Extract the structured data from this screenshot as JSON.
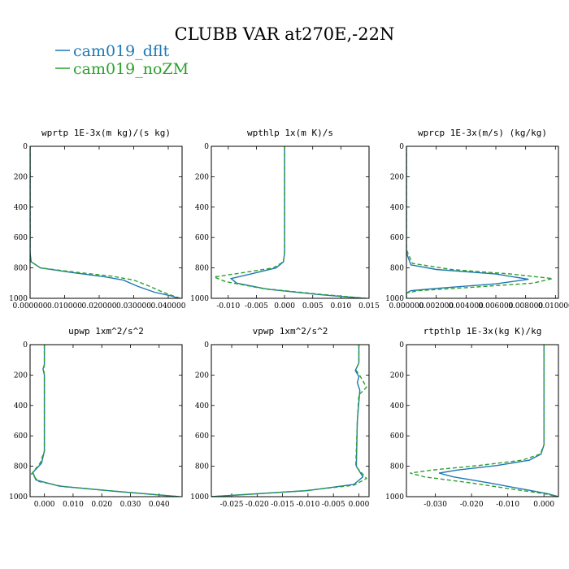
{
  "figure": {
    "title": "CLUBB VAR at270E,-22N",
    "legend": [
      {
        "name": "cam019_dflt",
        "color": "#1f77b4",
        "dash": "solid"
      },
      {
        "name": "cam019_noZM",
        "color": "#2ca02c",
        "dash": "dashed"
      }
    ]
  },
  "chart_data": [
    {
      "type": "line",
      "title": "wprtp  1E-3x(m kg)/(s kg)",
      "xlim": [
        0.0,
        0.044
      ],
      "ylim": [
        1000,
        0
      ],
      "xticks": [
        0.0,
        0.01,
        0.02,
        0.03,
        0.04
      ],
      "xtick_labels": [
        "0.000000",
        "0.010000",
        "0.020000",
        "0.030000",
        "0.040000"
      ],
      "yticks": [
        0,
        200,
        400,
        600,
        800,
        1000
      ],
      "ytick_labels": [
        "0",
        "200",
        "400",
        "600",
        "800",
        "1000"
      ],
      "series": [
        {
          "name": "cam019_dflt",
          "points": [
            [
              0.0,
              0
            ],
            [
              0.0,
              700
            ],
            [
              0.0003,
              760
            ],
            [
              0.003,
              800
            ],
            [
              0.012,
              830
            ],
            [
              0.022,
              860
            ],
            [
              0.027,
              880
            ],
            [
              0.031,
              920
            ],
            [
              0.036,
              960
            ],
            [
              0.041,
              985
            ],
            [
              0.043,
              1000
            ]
          ]
        },
        {
          "name": "cam019_noZM",
          "points": [
            [
              0.0,
              0
            ],
            [
              0.0,
              700
            ],
            [
              0.0003,
              760
            ],
            [
              0.003,
              800
            ],
            [
              0.013,
              828
            ],
            [
              0.024,
              855
            ],
            [
              0.03,
              880
            ],
            [
              0.034,
              915
            ],
            [
              0.038,
              955
            ],
            [
              0.0415,
              985
            ],
            [
              0.0435,
              1000
            ]
          ]
        }
      ]
    },
    {
      "type": "line",
      "title": "wpthlp  1x(m K)/s",
      "xlim": [
        -0.013,
        0.015
      ],
      "ylim": [
        1000,
        0
      ],
      "xticks": [
        -0.01,
        -0.005,
        0.0,
        0.005,
        0.01,
        0.015
      ],
      "xtick_labels": [
        "-0.010",
        "-0.005",
        "0.000",
        "0.005",
        "0.010",
        "0.015"
      ],
      "yticks": [
        0,
        200,
        400,
        600,
        800,
        1000
      ],
      "ytick_labels": [
        "0",
        "200",
        "400",
        "600",
        "800",
        "1000"
      ],
      "series": [
        {
          "name": "cam019_dflt",
          "points": [
            [
              0.0,
              0
            ],
            [
              0.0,
              700
            ],
            [
              -0.0002,
              760
            ],
            [
              -0.0015,
              800
            ],
            [
              -0.006,
              840
            ],
            [
              -0.0095,
              870
            ],
            [
              -0.0085,
              900
            ],
            [
              -0.003,
              940
            ],
            [
              0.006,
              975
            ],
            [
              0.014,
              1000
            ]
          ]
        },
        {
          "name": "cam019_noZM",
          "points": [
            [
              0.0,
              0
            ],
            [
              0.0,
              700
            ],
            [
              -0.0002,
              760
            ],
            [
              -0.002,
              800
            ],
            [
              -0.008,
              835
            ],
            [
              -0.0125,
              860
            ],
            [
              -0.0105,
              890
            ],
            [
              -0.004,
              935
            ],
            [
              0.006,
              972
            ],
            [
              0.0145,
              1000
            ]
          ]
        }
      ]
    },
    {
      "type": "line",
      "title": "wprcp  1E-3x(m/s) (kg/kg)",
      "xlim": [
        0.0,
        0.0102
      ],
      "ylim": [
        1000,
        0
      ],
      "xticks": [
        0.0,
        0.002,
        0.004,
        0.006,
        0.008,
        0.01
      ],
      "xtick_labels": [
        "0.000000",
        "0.002000",
        "0.004000",
        "0.006000",
        "0.008000",
        "0.010000"
      ],
      "yticks": [
        0,
        200,
        400,
        600,
        800,
        1000
      ],
      "ytick_labels": [
        "0",
        "200",
        "400",
        "600",
        "800",
        "1000"
      ],
      "series": [
        {
          "name": "cam019_dflt",
          "points": [
            [
              0.0,
              0
            ],
            [
              0.0,
              700
            ],
            [
              0.0003,
              780
            ],
            [
              0.002,
              810
            ],
            [
              0.006,
              840
            ],
            [
              0.0082,
              875
            ],
            [
              0.006,
              905
            ],
            [
              0.002,
              935
            ],
            [
              0.0003,
              950
            ],
            [
              0.0,
              965
            ],
            [
              0.0,
              1000
            ]
          ]
        },
        {
          "name": "cam019_noZM",
          "points": [
            [
              0.0,
              0
            ],
            [
              0.0,
              680
            ],
            [
              0.0004,
              770
            ],
            [
              0.003,
              810
            ],
            [
              0.007,
              840
            ],
            [
              0.0098,
              870
            ],
            [
              0.0085,
              900
            ],
            [
              0.004,
              930
            ],
            [
              0.0008,
              950
            ],
            [
              0.0,
              965
            ],
            [
              0.0,
              1000
            ]
          ]
        }
      ]
    },
    {
      "type": "line",
      "title": "upwp  1xm^2/s^2",
      "xlim": [
        -0.005,
        0.048
      ],
      "ylim": [
        1000,
        0
      ],
      "xticks": [
        0.0,
        0.01,
        0.02,
        0.03,
        0.04
      ],
      "xtick_labels": [
        "0.000",
        "0.010",
        "0.020",
        "0.030",
        "0.040"
      ],
      "yticks": [
        0,
        200,
        400,
        600,
        800,
        1000
      ],
      "ytick_labels": [
        "0",
        "200",
        "400",
        "600",
        "800",
        "1000"
      ],
      "series": [
        {
          "name": "cam019_dflt",
          "points": [
            [
              0.0,
              0
            ],
            [
              0.0,
              130
            ],
            [
              -0.0005,
              160
            ],
            [
              0.0,
              200
            ],
            [
              0.0,
              700
            ],
            [
              -0.001,
              780
            ],
            [
              -0.004,
              840
            ],
            [
              -0.003,
              890
            ],
            [
              0.005,
              930
            ],
            [
              0.025,
              965
            ],
            [
              0.047,
              1000
            ]
          ]
        },
        {
          "name": "cam019_noZM",
          "points": [
            [
              0.0,
              0
            ],
            [
              0.0,
              130
            ],
            [
              -0.0003,
              160
            ],
            [
              0.0,
              200
            ],
            [
              0.0,
              700
            ],
            [
              -0.0015,
              780
            ],
            [
              -0.0045,
              850
            ],
            [
              -0.002,
              900
            ],
            [
              0.007,
              935
            ],
            [
              0.027,
              968
            ],
            [
              0.047,
              1000
            ]
          ]
        }
      ]
    },
    {
      "type": "line",
      "title": "vpwp  1xm^2/s^2",
      "xlim": [
        -0.029,
        0.002
      ],
      "ylim": [
        1000,
        0
      ],
      "xticks": [
        -0.025,
        -0.02,
        -0.015,
        -0.01,
        -0.005,
        0.0
      ],
      "xtick_labels": [
        "-0.025",
        "-0.020",
        "-0.015",
        "-0.010",
        "-0.005",
        "0.000"
      ],
      "yticks": [
        0,
        200,
        400,
        600,
        800,
        1000
      ],
      "ytick_labels": [
        "0",
        "200",
        "400",
        "600",
        "800",
        "1000"
      ],
      "series": [
        {
          "name": "cam019_dflt",
          "points": [
            [
              0.0,
              0
            ],
            [
              0.0,
              120
            ],
            [
              -0.0007,
              170
            ],
            [
              0.0,
              210
            ],
            [
              -0.0003,
              250
            ],
            [
              0.0002,
              300
            ],
            [
              -0.0003,
              500
            ],
            [
              -0.0005,
              800
            ],
            [
              0.0008,
              870
            ],
            [
              -0.001,
              920
            ],
            [
              -0.01,
              960
            ],
            [
              -0.029,
              1000
            ]
          ]
        },
        {
          "name": "cam019_noZM",
          "points": [
            [
              0.0,
              0
            ],
            [
              0.0,
              120
            ],
            [
              -0.0006,
              165
            ],
            [
              0.0003,
              210
            ],
            [
              0.0015,
              280
            ],
            [
              0.0,
              330
            ],
            [
              -0.0003,
              500
            ],
            [
              -0.0006,
              800
            ],
            [
              0.0015,
              880
            ],
            [
              -0.001,
              925
            ],
            [
              -0.011,
              962
            ],
            [
              -0.029,
              1000
            ]
          ]
        }
      ]
    },
    {
      "type": "line",
      "title": "rtpthlp  1E-3x(kg K)/kg",
      "xlim": [
        -0.038,
        0.004
      ],
      "ylim": [
        1000,
        0
      ],
      "xticks": [
        -0.03,
        -0.02,
        -0.01,
        0.0
      ],
      "xtick_labels": [
        "-0.030",
        "-0.020",
        "-0.010",
        "0.000"
      ],
      "yticks": [
        0,
        200,
        400,
        600,
        800,
        1000
      ],
      "ytick_labels": [
        "0",
        "200",
        "400",
        "600",
        "800",
        "1000"
      ],
      "series": [
        {
          "name": "cam019_dflt",
          "points": [
            [
              0.0,
              0
            ],
            [
              0.0,
              660
            ],
            [
              -0.0008,
              720
            ],
            [
              -0.004,
              760
            ],
            [
              -0.013,
              795
            ],
            [
              -0.024,
              825
            ],
            [
              -0.029,
              845
            ],
            [
              -0.025,
              870
            ],
            [
              -0.015,
              910
            ],
            [
              -0.006,
              950
            ],
            [
              0.001,
              980
            ],
            [
              0.004,
              1000
            ]
          ]
        },
        {
          "name": "cam019_noZM",
          "points": [
            [
              0.0,
              0
            ],
            [
              0.0,
              660
            ],
            [
              -0.001,
              720
            ],
            [
              -0.006,
              760
            ],
            [
              -0.018,
              795
            ],
            [
              -0.031,
              825
            ],
            [
              -0.037,
              845
            ],
            [
              -0.033,
              870
            ],
            [
              -0.02,
              910
            ],
            [
              -0.009,
              950
            ],
            [
              0.0,
              980
            ],
            [
              0.004,
              1000
            ]
          ]
        }
      ]
    }
  ]
}
